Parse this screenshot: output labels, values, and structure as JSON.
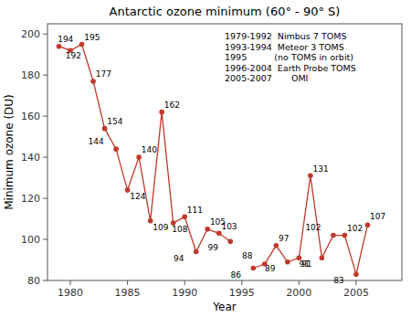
{
  "chart_data": {
    "type": "line",
    "title": "Antarctic ozone minimum (60° - 90° S)",
    "x_label": "Year",
    "y_label": "Minimum ozone (DU)",
    "x": [
      1979,
      1980,
      1981,
      1982,
      1983,
      1984,
      1985,
      1986,
      1987,
      1988,
      1989,
      1990,
      1991,
      1992,
      1993,
      1994,
      1995,
      1996,
      1997,
      1998,
      1999,
      2000,
      2001,
      2002,
      2003,
      2004,
      2005,
      2006
    ],
    "values": [
      194,
      192,
      195,
      177,
      154,
      144,
      124,
      140,
      109,
      162,
      108,
      111,
      94,
      105,
      103,
      99,
      null,
      86,
      88,
      97,
      89,
      91,
      131,
      91,
      102,
      102,
      83,
      107
    ],
    "color": "#c0392b",
    "marker": "circle",
    "data_labels": true,
    "grid": false,
    "xlim": [
      1978,
      2009
    ],
    "ylim": [
      80,
      205
    ],
    "xticks": [
      1980,
      1985,
      1990,
      1995,
      2000,
      2005
    ],
    "yticks": [
      80,
      100,
      120,
      140,
      160,
      180,
      200
    ],
    "annotations": [
      "1979-1992  Nimbus 7 TOMS",
      "1993-1994  Meteor 3 TOMS",
      "1995          (no TOMS in orbit)",
      "1996-2004  Earth Probe TOMS",
      "2005-2007       OMI"
    ]
  }
}
